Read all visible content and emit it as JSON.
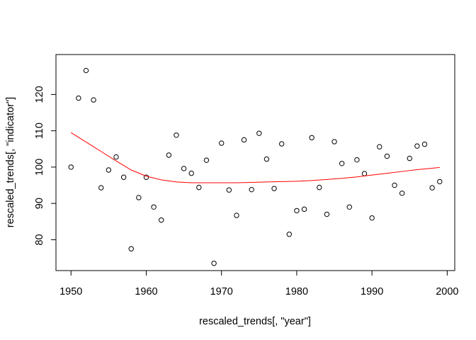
{
  "chart_data": {
    "type": "scatter",
    "xlabel": "rescaled_trends[, \"year\"]",
    "ylabel": "rescaled_trends[, \"indicator\"]",
    "xlim": [
      1948,
      2001
    ],
    "ylim": [
      71.5,
      131
    ],
    "xticks": [
      1950,
      1960,
      1970,
      1980,
      1990,
      2000
    ],
    "yticks": [
      80,
      90,
      100,
      110,
      120
    ],
    "grid": false,
    "legend": "none",
    "series": [
      {
        "type": "scatter",
        "marker": "open-circle",
        "color": "#000000",
        "x": [
          1950,
          1951,
          1952,
          1953,
          1954,
          1955,
          1956,
          1957,
          1958,
          1959,
          1960,
          1961,
          1962,
          1963,
          1964,
          1965,
          1966,
          1967,
          1968,
          1969,
          1970,
          1971,
          1972,
          1973,
          1974,
          1975,
          1976,
          1977,
          1978,
          1979,
          1980,
          1981,
          1982,
          1983,
          1984,
          1985,
          1986,
          1987,
          1988,
          1989,
          1990,
          1991,
          1992,
          1993,
          1994,
          1995,
          1996,
          1997,
          1998,
          1999
        ],
        "y": [
          100.0,
          119.0,
          126.6,
          118.5,
          94.3,
          99.2,
          102.8,
          97.2,
          77.5,
          91.6,
          97.2,
          89.0,
          85.4,
          103.3,
          108.8,
          99.6,
          98.3,
          94.4,
          101.9,
          73.5,
          106.6,
          93.7,
          86.7,
          107.5,
          93.8,
          109.3,
          102.2,
          94.1,
          106.4,
          81.5,
          88.0,
          88.4,
          108.1,
          94.4,
          87.0,
          107.0,
          101.0,
          89.0,
          102.0,
          98.2,
          86.0,
          105.6,
          103.0,
          95.0,
          92.8,
          102.4,
          105.8,
          106.3,
          94.3,
          96.0
        ]
      },
      {
        "type": "line",
        "color": "#ff0000",
        "x": [
          1950,
          1952,
          1954,
          1956,
          1958,
          1960,
          1962,
          1964,
          1966,
          1968,
          1970,
          1972,
          1974,
          1976,
          1978,
          1980,
          1982,
          1984,
          1986,
          1988,
          1990,
          1992,
          1994,
          1996,
          1998,
          1999
        ],
        "y": [
          109.5,
          106.9,
          104.3,
          101.7,
          99.2,
          97.5,
          96.5,
          95.9,
          95.7,
          95.7,
          95.7,
          95.7,
          95.8,
          95.9,
          96.0,
          96.1,
          96.3,
          96.6,
          96.9,
          97.3,
          97.8,
          98.3,
          98.8,
          99.3,
          99.7,
          99.9
        ]
      }
    ]
  }
}
